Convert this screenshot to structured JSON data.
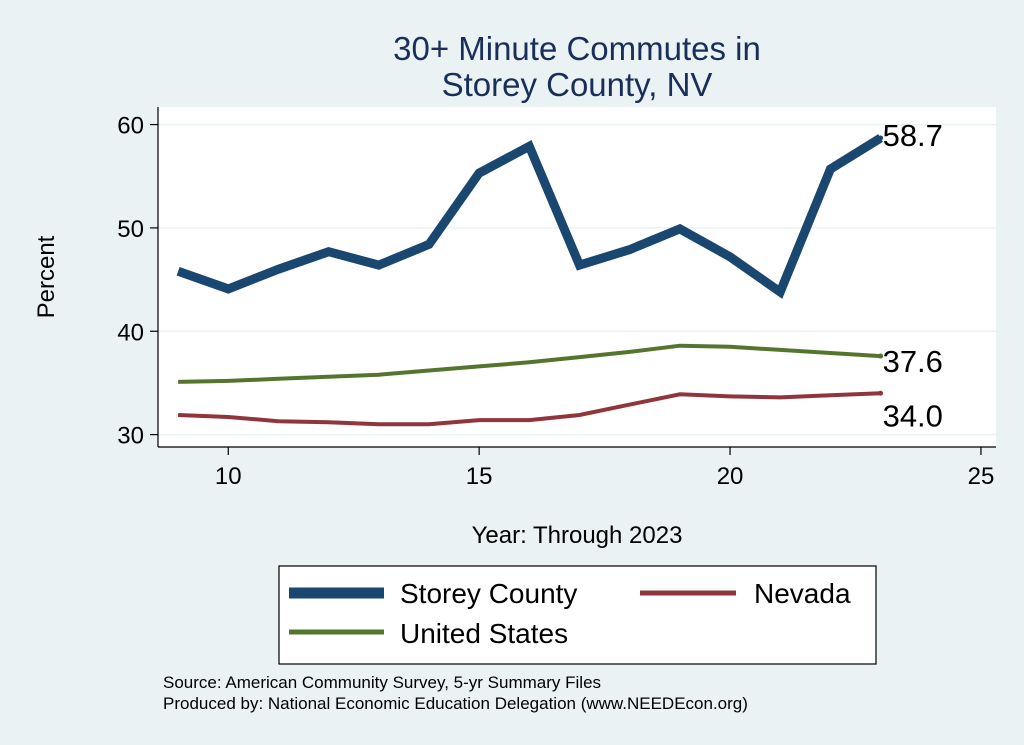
{
  "chart_data": {
    "type": "line",
    "title": [
      "30+ Minute Commutes in",
      "Storey County, NV"
    ],
    "xlabel": "Year: Through 2023",
    "ylabel": "Percent",
    "xlim": [
      8.6,
      25.3
    ],
    "ylim": [
      28.8,
      61.7
    ],
    "xticks": [
      10,
      15,
      20,
      25
    ],
    "yticks": [
      30,
      40,
      50,
      60
    ],
    "grid": true,
    "x": [
      9,
      10,
      11,
      12,
      13,
      14,
      15,
      16,
      17,
      18,
      19,
      20,
      21,
      22,
      23
    ],
    "series": [
      {
        "name": "Storey County",
        "color": "#1a476f",
        "values": [
          45.8,
          44.1,
          46.0,
          47.7,
          46.4,
          48.4,
          55.3,
          57.9,
          46.4,
          47.9,
          49.9,
          47.2,
          43.8,
          55.7,
          58.7
        ],
        "end_label": "58.7"
      },
      {
        "name": "Nevada",
        "color": "#90353b",
        "values": [
          31.9,
          31.7,
          31.3,
          31.2,
          31.0,
          31.0,
          31.4,
          31.4,
          31.9,
          32.9,
          33.9,
          33.7,
          33.6,
          33.8,
          34.0
        ],
        "end_label": "34.0"
      },
      {
        "name": "United States",
        "color": "#55752f",
        "values": [
          35.1,
          35.2,
          35.4,
          35.6,
          35.8,
          36.2,
          36.6,
          37.0,
          37.5,
          38.0,
          38.6,
          38.5,
          38.2,
          37.9,
          37.6
        ],
        "end_label": "37.6"
      }
    ],
    "legend": {
      "placement": "bottom",
      "entries": [
        "Storey County",
        "Nevada",
        "United States"
      ]
    }
  },
  "source": {
    "line1": "Source: American Community Survey, 5-yr Summary Files",
    "line2": "Produced by: National Economic Education Delegation (www.NEEDEcon.org)"
  }
}
